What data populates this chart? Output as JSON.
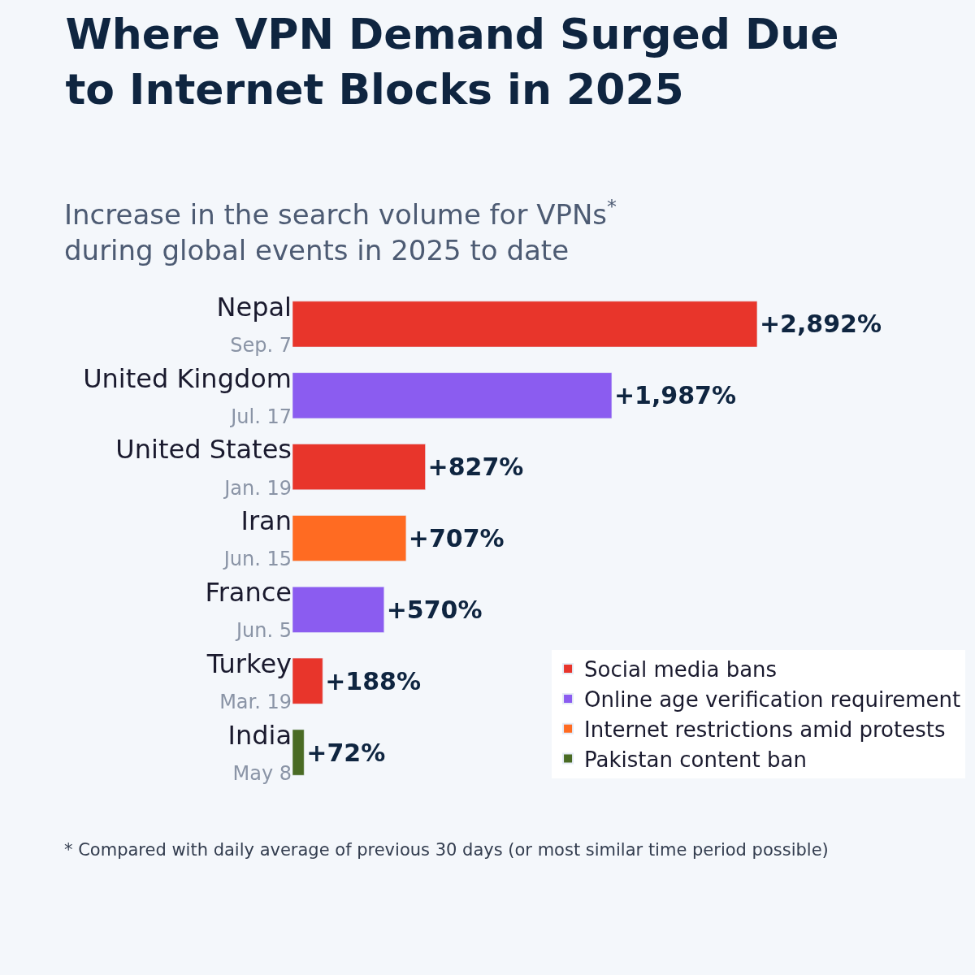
{
  "chart_data": {
    "type": "bar",
    "orientation": "horizontal",
    "title": "Where VPN Demand Surged Due\nto Internet Blocks in 2025",
    "subtitle": "Increase in the search volume for VPNs$^{*}$\nduring global events in 2025 to date",
    "categories": [
      "Nepal\nSep. 7",
      "United Kingdom\nJul. 17",
      "United States\nJan. 19",
      "Iran\nJun. 15",
      "France\nJun. 5",
      "Turkey\nMar. 19",
      "India\nMay 8"
    ],
    "series": [
      {
        "name": "Social media bans",
        "color": "#e8352b",
        "values": [
          2892,
          null,
          827,
          null,
          null,
          188,
          null
        ],
        "value_labels": [
          "+2,892%",
          null,
          "+827%",
          null,
          null,
          "+188%",
          null
        ]
      },
      {
        "name": "Online age verification requirement",
        "color": "#8b5cf0",
        "values": [
          null,
          1987,
          null,
          null,
          570,
          null,
          null
        ],
        "value_labels": [
          null,
          "+1,987%",
          null,
          null,
          "+570%",
          null,
          null
        ]
      },
      {
        "name": "Internet restrictions amid protests",
        "color": "#ff6b22",
        "values": [
          null,
          null,
          null,
          707,
          null,
          null,
          null
        ],
        "value_labels": [
          null,
          null,
          null,
          "+707%",
          null,
          null,
          null
        ]
      },
      {
        "name": "Pakistan content ban",
        "color": "#4a6b24",
        "values": [
          null,
          null,
          null,
          null,
          null,
          null,
          72
        ],
        "value_labels": [
          null,
          null,
          null,
          null,
          null,
          null,
          "+72%"
        ]
      }
    ],
    "legend": "bottom right",
    "annotations": [
      "* Compared with daily average of previous 30 days (or most similar time period possible)"
    ]
  }
}
